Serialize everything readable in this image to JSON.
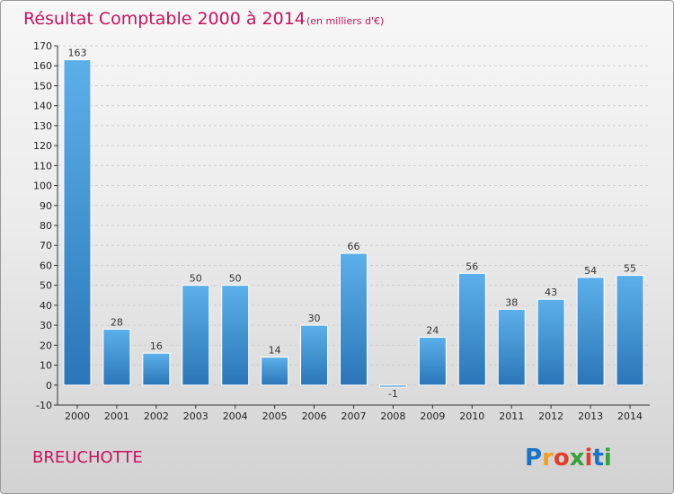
{
  "chart_data": {
    "type": "bar",
    "title": "Résultat Comptable 2000 à 2014",
    "subtitle": "(en milliers d'€)",
    "categories": [
      "2000",
      "2001",
      "2002",
      "2003",
      "2004",
      "2005",
      "2006",
      "2007",
      "2008",
      "2009",
      "2010",
      "2011",
      "2012",
      "2013",
      "2014"
    ],
    "values": [
      163,
      28,
      16,
      50,
      50,
      14,
      30,
      66,
      -1,
      24,
      56,
      38,
      43,
      54,
      55
    ],
    "value_labels": [
      "163",
      "28",
      "16",
      "50",
      "50",
      "14",
      "30",
      "66",
      "-1",
      "24",
      "56",
      "38",
      "43",
      "54",
      "55"
    ],
    "yticks": [
      -10,
      0,
      10,
      20,
      30,
      40,
      50,
      60,
      70,
      80,
      90,
      100,
      110,
      120,
      130,
      140,
      150,
      160,
      170
    ],
    "ylim": [
      -10,
      170
    ],
    "xlabel": "",
    "ylabel": "",
    "grid": "horizontal-dashed",
    "bar_color": "#3a8fd4",
    "bar_color_light": "#5cb0ea",
    "bar_color_dark": "#2a76b8"
  },
  "commune": "BREUCHOTTE",
  "logo": {
    "letters": [
      "P",
      "r",
      "o",
      "x",
      "i",
      "t",
      "i"
    ],
    "colors": [
      "#1b72c8",
      "#f0a020",
      "#e23c2c",
      "#35a33a",
      "#e23c2c",
      "#1b72c8",
      "#35a33a"
    ]
  },
  "colors": {
    "accent": "#c8125c",
    "grid": "#cfcfcf",
    "axis": "#333333"
  }
}
